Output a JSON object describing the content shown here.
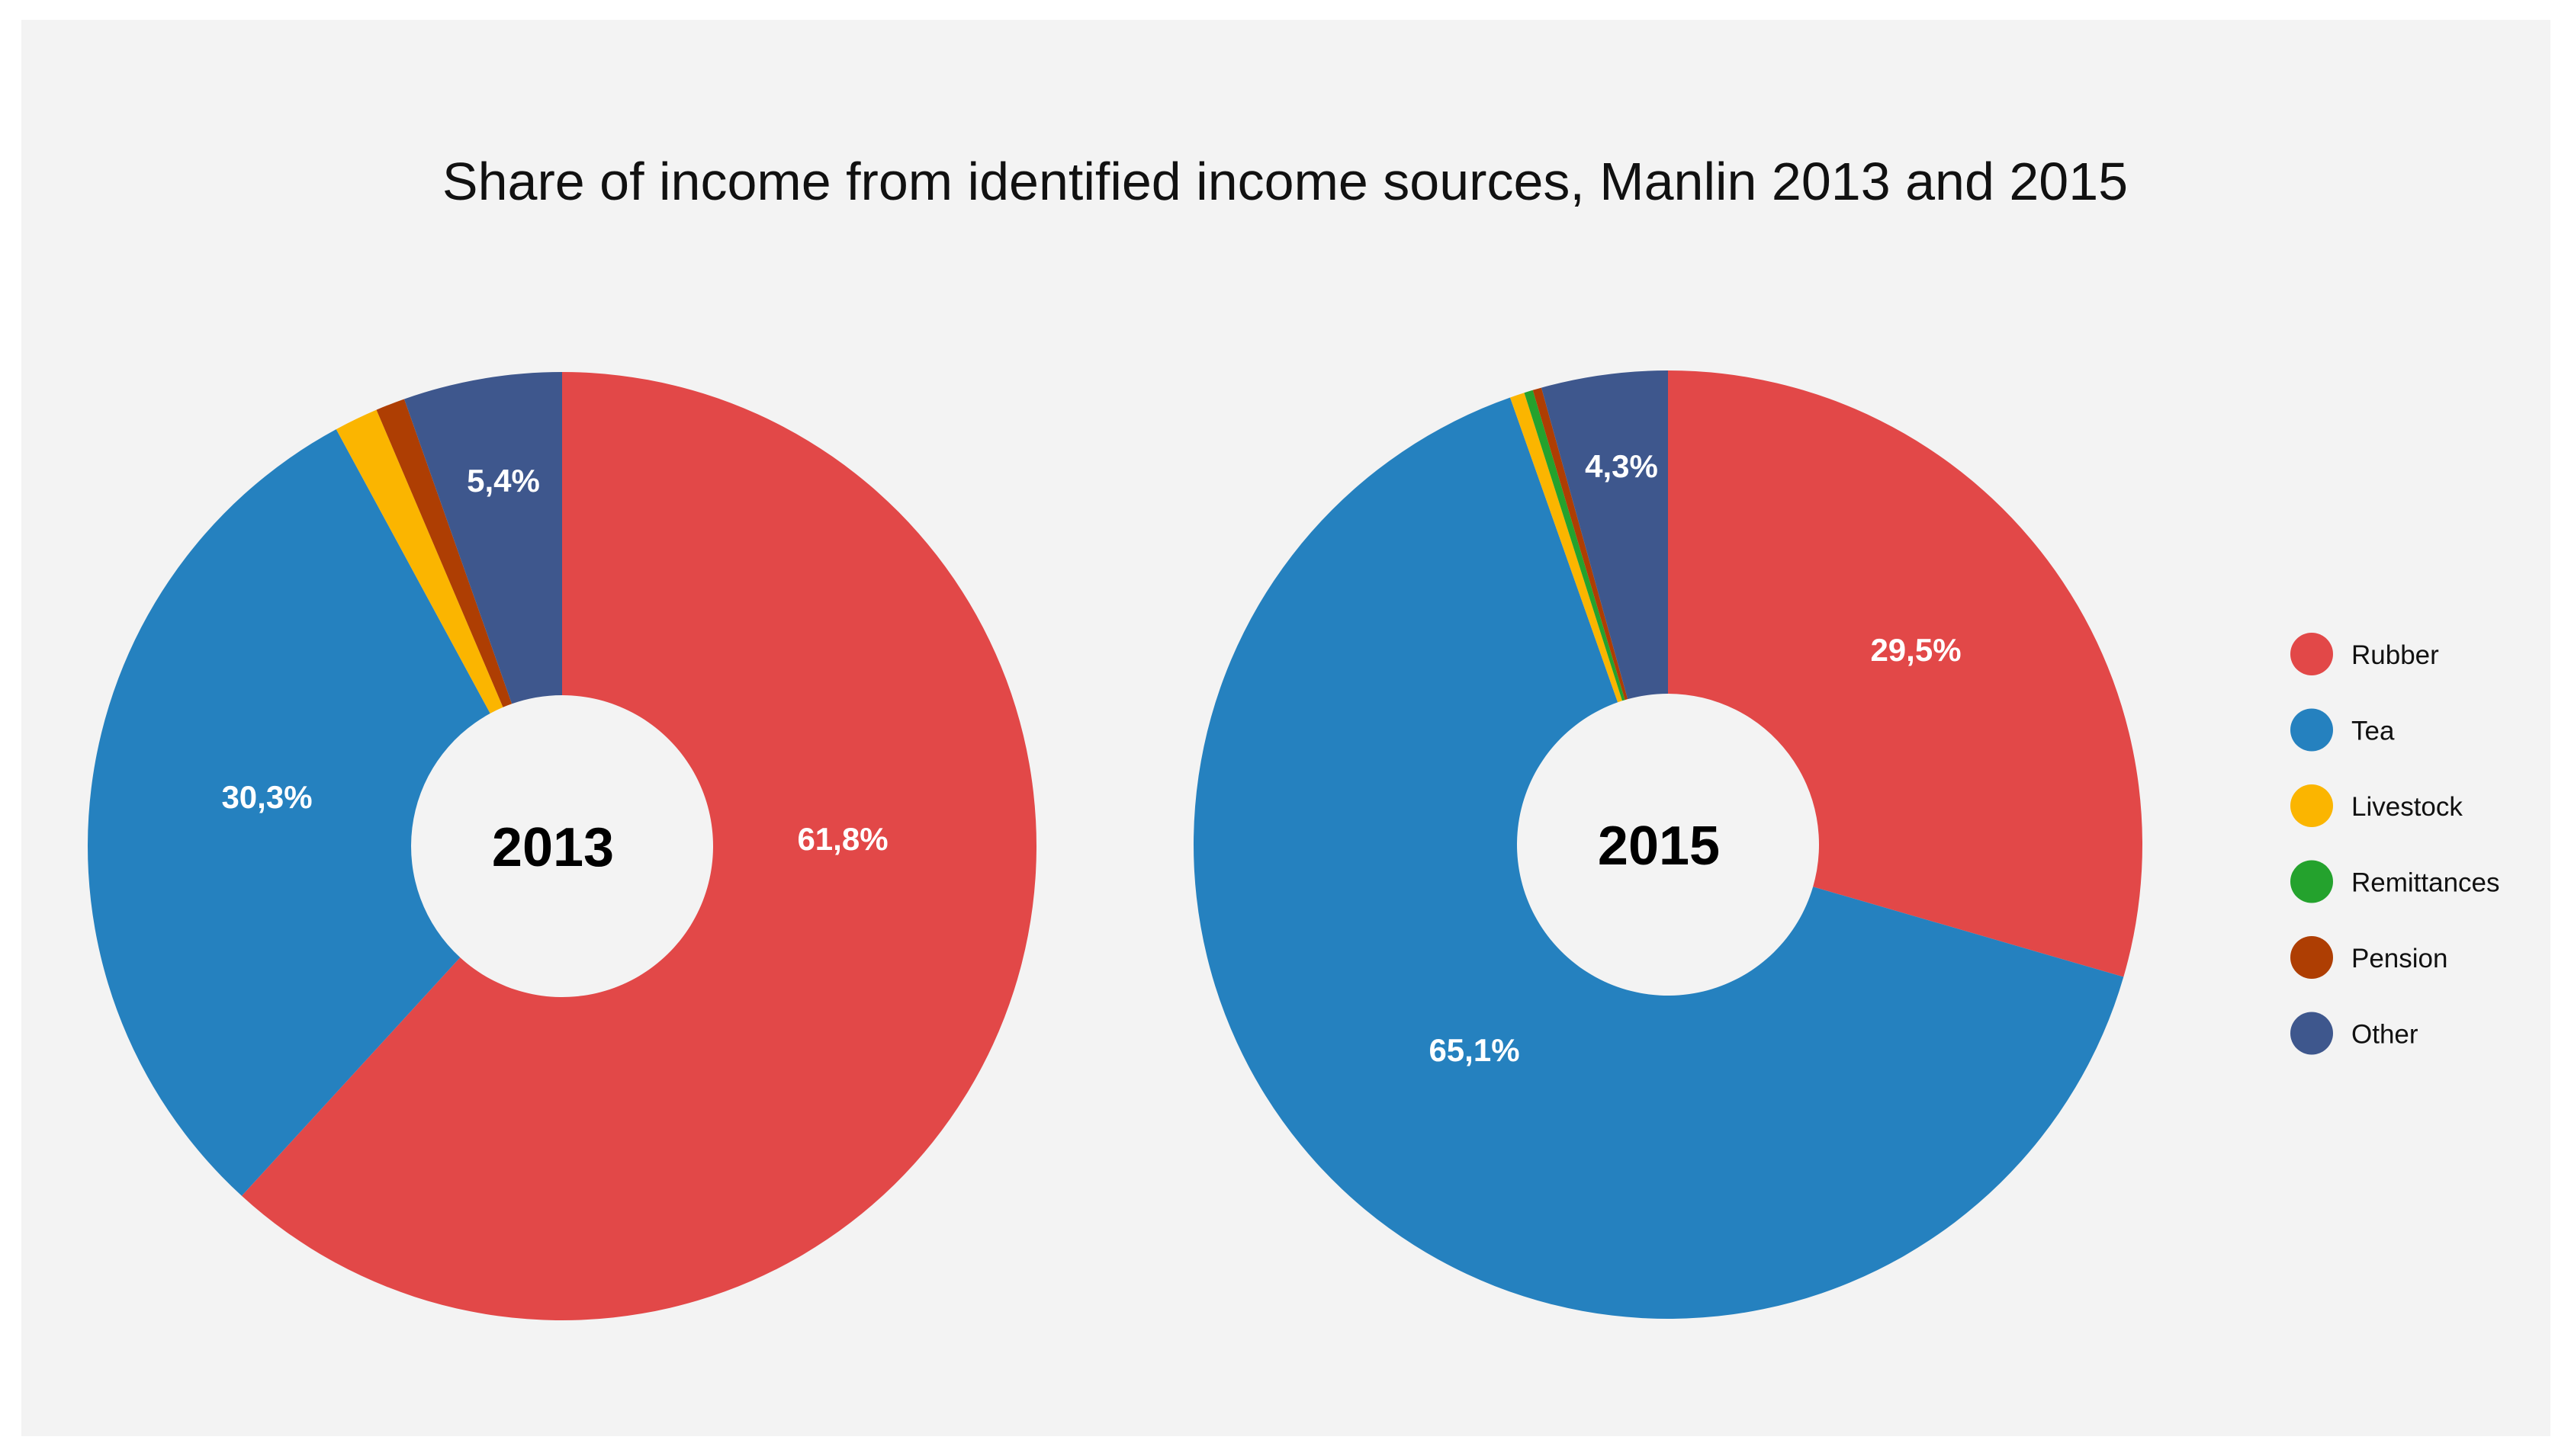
{
  "chart_data": {
    "type": "pie",
    "title": "Share of income from identified income sources, Manlin 2013 and 2015",
    "categories": [
      "Rubber",
      "Tea",
      "Livestock",
      "Remittances",
      "Pension",
      "Other"
    ],
    "colors": {
      "Rubber": "#e24848",
      "Tea": "#2581bf",
      "Livestock": "#fbb500",
      "Remittances": "#24a22d",
      "Pension": "#ae3e03",
      "Other": "#3e578d"
    },
    "background": "#f3f3f3",
    "charts": [
      {
        "center_label": "2013",
        "values": [
          61.8,
          30.3,
          1.5,
          0.0,
          1.0,
          5.4
        ],
        "data_labels": [
          "61,8%",
          "30,3%",
          "",
          "",
          "",
          "5,4%"
        ]
      },
      {
        "center_label": "2015",
        "values": [
          29.5,
          65.1,
          0.5,
          0.3,
          0.3,
          4.3
        ],
        "data_labels": [
          "29,5%",
          "65,1%",
          "",
          "",
          "",
          "4,3%"
        ]
      }
    ],
    "legend_position": "right"
  }
}
